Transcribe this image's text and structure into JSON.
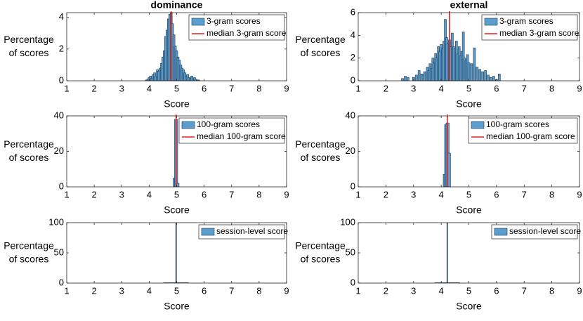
{
  "colors": {
    "bar_fill": "#5a9ed0",
    "bar_edge": "#1d3346",
    "median_line": "#e02020",
    "axis": "#262626"
  },
  "chart_data": [
    {
      "type": "bar",
      "title": "dominance",
      "xlabel": "Score",
      "ylabel": [
        "Percentage",
        "of scores"
      ],
      "xlim": [
        1,
        9
      ],
      "ylim": [
        0,
        4.3
      ],
      "xticks": [
        "1",
        "2",
        "3",
        "4",
        "5",
        "6",
        "7",
        "8",
        "9"
      ],
      "yticks": [
        0,
        2,
        4
      ],
      "legend": [
        "3-gram scores",
        "median 3-gram score"
      ],
      "legend_position": "top-right",
      "median": 4.8,
      "series": [
        {
          "name": "3-gram scores",
          "x": [
            3.9,
            3.95,
            4.0,
            4.05,
            4.1,
            4.15,
            4.2,
            4.25,
            4.3,
            4.35,
            4.4,
            4.45,
            4.5,
            4.55,
            4.6,
            4.65,
            4.7,
            4.75,
            4.8,
            4.85,
            4.9,
            4.95,
            5.0,
            5.05,
            5.1,
            5.15,
            5.2,
            5.25,
            5.3,
            5.35,
            5.4,
            5.45,
            5.5,
            5.55,
            5.6,
            5.65,
            5.7,
            5.75,
            5.8
          ],
          "values": [
            0.05,
            0.1,
            0.2,
            0.3,
            0.15,
            0.4,
            0.5,
            0.3,
            0.7,
            0.6,
            0.8,
            1.1,
            1.5,
            1.9,
            2.8,
            3.2,
            3.9,
            4.2,
            4.3,
            3.6,
            2.9,
            2.2,
            1.9,
            1.5,
            1.3,
            1.0,
            0.8,
            0.7,
            0.5,
            0.3,
            0.4,
            0.2,
            0.15,
            0.3,
            0.1,
            0.2,
            0.1,
            0.05,
            0.05
          ]
        }
      ]
    },
    {
      "type": "bar",
      "title": "external",
      "xlabel": "Score",
      "ylabel": [
        "Percentage",
        "of scores"
      ],
      "xlim": [
        1,
        9
      ],
      "ylim": [
        0,
        6
      ],
      "xticks": [
        "1",
        "2",
        "3",
        "4",
        "5",
        "6",
        "7",
        "8",
        "9"
      ],
      "yticks": [
        0,
        2,
        4,
        6
      ],
      "legend": [
        "3-gram scores",
        "median 3-gram score"
      ],
      "legend_position": "top-right",
      "median": 4.3,
      "series": [
        {
          "name": "3-gram scores",
          "x": [
            2.6,
            2.7,
            2.8,
            3.0,
            3.1,
            3.2,
            3.3,
            3.4,
            3.5,
            3.55,
            3.6,
            3.65,
            3.7,
            3.75,
            3.8,
            3.85,
            3.9,
            3.95,
            4.0,
            4.05,
            4.1,
            4.15,
            4.2,
            4.25,
            4.3,
            4.35,
            4.4,
            4.45,
            4.5,
            4.55,
            4.6,
            4.65,
            4.7,
            4.75,
            4.8,
            4.85,
            4.9,
            4.95,
            5.0,
            5.1,
            5.2,
            5.3,
            5.4,
            5.5,
            5.6,
            5.7,
            5.8,
            5.9,
            6.0,
            6.1
          ],
          "values": [
            0.2,
            0.4,
            0.3,
            0.3,
            0.5,
            0.9,
            0.6,
            0.8,
            1.2,
            0.9,
            1.5,
            1.1,
            2.0,
            1.6,
            2.4,
            2.0,
            3.0,
            2.6,
            3.2,
            2.8,
            3.5,
            5.4,
            3.8,
            3.3,
            3.6,
            3.0,
            4.2,
            3.0,
            2.8,
            3.5,
            2.4,
            3.0,
            2.2,
            2.6,
            4.3,
            2.0,
            1.8,
            2.3,
            1.6,
            1.5,
            2.9,
            1.2,
            1.0,
            0.8,
            0.9,
            0.5,
            0.3,
            0.4,
            0.1,
            0.6
          ]
        }
      ]
    },
    {
      "type": "bar",
      "title": "",
      "xlabel": "Score",
      "ylabel": [
        "Percentage",
        "of scores"
      ],
      "xlim": [
        1,
        9
      ],
      "ylim": [
        0,
        40
      ],
      "xticks": [
        "1",
        "2",
        "3",
        "4",
        "5",
        "6",
        "7",
        "8",
        "9"
      ],
      "yticks": [
        0,
        20,
        40
      ],
      "legend": [
        "100-gram scores",
        "median 100-gram score"
      ],
      "legend_position": "top-right",
      "median": 4.98,
      "series": [
        {
          "name": "100-gram scores",
          "x": [
            4.93,
            4.98,
            5.03
          ],
          "values": [
            5,
            38,
            2
          ]
        }
      ]
    },
    {
      "type": "bar",
      "title": "",
      "xlabel": "Score",
      "ylabel": [
        "Percentage",
        "of scores"
      ],
      "xlim": [
        1,
        9
      ],
      "ylim": [
        0,
        40
      ],
      "xticks": [
        "1",
        "2",
        "3",
        "4",
        "5",
        "6",
        "7",
        "8",
        "9"
      ],
      "yticks": [
        0,
        20,
        40
      ],
      "legend": [
        "100-gram scores",
        "median 100-gram score"
      ],
      "legend_position": "top-right",
      "median": 4.22,
      "series": [
        {
          "name": "100-gram scores",
          "x": [
            4.13,
            4.18,
            4.23,
            4.28
          ],
          "values": [
            7,
            35,
            36,
            19
          ]
        }
      ]
    },
    {
      "type": "bar",
      "title": "",
      "xlabel": "Score",
      "ylabel": [
        "Percentage",
        "of scores"
      ],
      "xlim": [
        1,
        9
      ],
      "ylim": [
        0,
        100
      ],
      "xticks": [
        "1",
        "2",
        "3",
        "4",
        "5",
        "6",
        "7",
        "8",
        "9"
      ],
      "yticks": [
        0,
        50,
        100
      ],
      "legend": [
        "session-level score"
      ],
      "legend_position": "top-right",
      "session_score": 4.98,
      "series": [
        {
          "name": "session-level score",
          "x": [
            4.98
          ],
          "values": [
            100
          ]
        }
      ]
    },
    {
      "type": "bar",
      "title": "",
      "xlabel": "Score",
      "ylabel": [
        "Percentage",
        "of scores"
      ],
      "xlim": [
        1,
        9
      ],
      "ylim": [
        0,
        100
      ],
      "xticks": [
        "1",
        "2",
        "3",
        "4",
        "5",
        "6",
        "7",
        "8",
        "9"
      ],
      "yticks": [
        0,
        50,
        100
      ],
      "legend": [
        "session-level score"
      ],
      "legend_position": "top-right",
      "session_score": 4.22,
      "series": [
        {
          "name": "session-level score",
          "x": [
            4.22
          ],
          "values": [
            100
          ]
        }
      ]
    }
  ]
}
